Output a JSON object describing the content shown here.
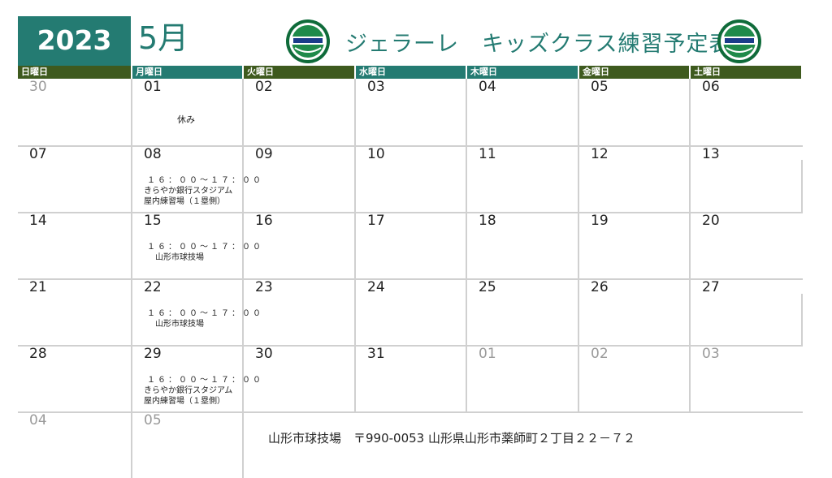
{
  "header": {
    "year": "2023",
    "month": "5月",
    "title": "ジェラーレ　キッズクラス練習予定表",
    "logo_icon": "club-emblem-icon",
    "colors": {
      "teal": "#247b72",
      "dark_green": "#3e5a1e",
      "grid": "#d0d0d0"
    }
  },
  "days_of_week": [
    "日曜日",
    "月曜日",
    "火曜日",
    "水曜日",
    "木曜日",
    "金曜日",
    "土曜日"
  ],
  "weeks": [
    [
      {
        "d": "30",
        "muted": true
      },
      {
        "d": "01",
        "note": [
          "休み"
        ]
      },
      {
        "d": "02"
      },
      {
        "d": "03"
      },
      {
        "d": "04"
      },
      {
        "d": "05"
      },
      {
        "d": "06"
      }
    ],
    [
      {
        "d": "07"
      },
      {
        "d": "08",
        "note": [
          "１６：００～１７：００",
          "きらやか銀行スタジアム",
          "屋内練習場（１塁側）"
        ]
      },
      {
        "d": "09"
      },
      {
        "d": "10"
      },
      {
        "d": "11"
      },
      {
        "d": "12"
      },
      {
        "d": "13"
      }
    ],
    [
      {
        "d": "14"
      },
      {
        "d": "15",
        "note": [
          "１６：００～１７：００",
          "山形市球技場"
        ]
      },
      {
        "d": "16"
      },
      {
        "d": "17"
      },
      {
        "d": "18"
      },
      {
        "d": "19"
      },
      {
        "d": "20"
      }
    ],
    [
      {
        "d": "21"
      },
      {
        "d": "22",
        "note": [
          "１６：００～１７：００",
          "山形市球技場"
        ]
      },
      {
        "d": "23"
      },
      {
        "d": "24"
      },
      {
        "d": "25"
      },
      {
        "d": "26"
      },
      {
        "d": "27"
      }
    ],
    [
      {
        "d": "28"
      },
      {
        "d": "29",
        "note": [
          "１６：００～１７：００",
          "きらやか銀行スタジアム",
          "屋内練習場（１塁側）"
        ]
      },
      {
        "d": "30"
      },
      {
        "d": "31"
      },
      {
        "d": "01",
        "muted": true
      },
      {
        "d": "02",
        "muted": true
      },
      {
        "d": "03",
        "muted": true
      }
    ],
    [
      {
        "d": "04",
        "muted": true
      },
      {
        "d": "05",
        "muted": true
      }
    ]
  ],
  "footer": {
    "address": "山形市球技場　〒990-0053 山形県山形市薬師町２丁目２２－７２"
  }
}
